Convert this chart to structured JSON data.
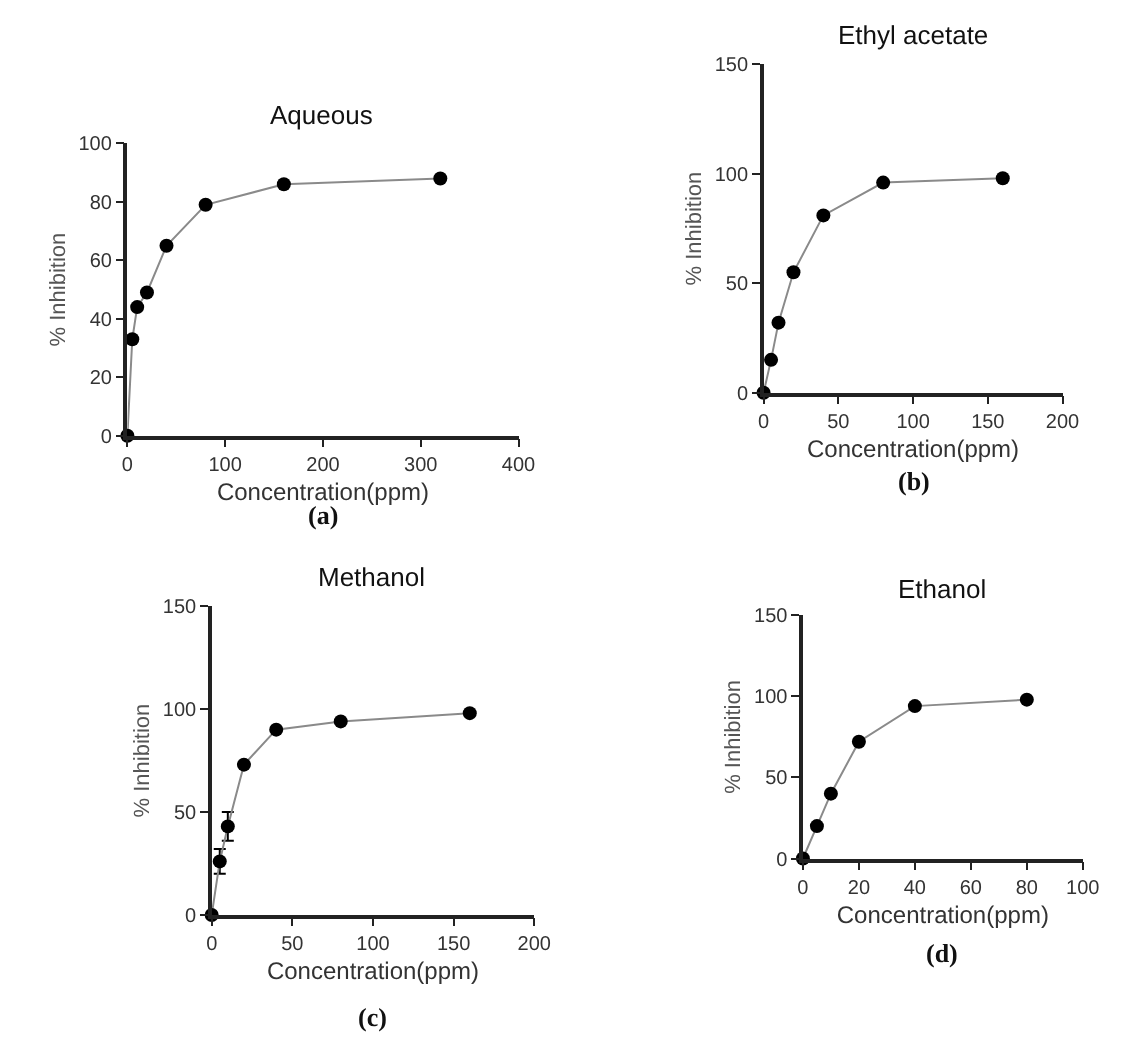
{
  "chart_data": [
    {
      "type": "line",
      "title": "Aqueous",
      "xlabel": "Concentration(ppm)",
      "ylabel": "% Inhibition",
      "annotations": [
        "(a)"
      ],
      "x": [
        0,
        5,
        10,
        20,
        40,
        80,
        160,
        320
      ],
      "series": [
        {
          "color": "#000000",
          "values": [
            0,
            33,
            44,
            49,
            65,
            79,
            86,
            88
          ]
        }
      ],
      "xlim": [
        0,
        400
      ],
      "xticks": [
        0,
        100,
        200,
        300,
        400
      ],
      "ylim": [
        0,
        100
      ],
      "yticks": [
        0,
        20,
        40,
        60,
        80,
        100
      ],
      "marker": "circle",
      "line_style": "solid"
    },
    {
      "type": "line",
      "title": "Ethyl acetate",
      "xlabel": "Concentration(ppm)",
      "ylabel": "% Inhibition",
      "annotations": [
        "(b)"
      ],
      "x": [
        0,
        5,
        10,
        20,
        40,
        80,
        160
      ],
      "series": [
        {
          "color": "#000000",
          "values": [
            0,
            15,
            32,
            55,
            81,
            96,
            98
          ]
        }
      ],
      "xlim": [
        0,
        200
      ],
      "xticks": [
        0,
        50,
        100,
        150,
        200
      ],
      "ylim": [
        0,
        150
      ],
      "yticks": [
        0,
        50,
        100,
        150
      ],
      "marker": "circle",
      "line_style": "solid"
    },
    {
      "type": "line",
      "title": "Methanol",
      "xlabel": "Concentration(ppm)",
      "ylabel": "% Inhibition",
      "annotations": [
        "(c)"
      ],
      "x": [
        0,
        5,
        10,
        20,
        40,
        80,
        160
      ],
      "series": [
        {
          "color": "#000000",
          "values": [
            0,
            26,
            43,
            73,
            90,
            94,
            98
          ],
          "errors": [
            null,
            6,
            7,
            null,
            null,
            null,
            null
          ]
        }
      ],
      "xlim": [
        0,
        200
      ],
      "xticks": [
        0,
        50,
        100,
        150,
        200
      ],
      "ylim": [
        0,
        150
      ],
      "yticks": [
        0,
        50,
        100,
        150
      ],
      "marker": "circle",
      "line_style": "solid"
    },
    {
      "type": "line",
      "title": "Ethanol",
      "xlabel": "Concentration(ppm)",
      "ylabel": "% Inhibition",
      "annotations": [
        "(d)"
      ],
      "x": [
        0,
        5,
        10,
        20,
        40,
        80
      ],
      "series": [
        {
          "color": "#000000",
          "values": [
            0,
            20,
            40,
            72,
            94,
            98
          ]
        }
      ],
      "xlim": [
        0,
        100
      ],
      "xticks": [
        0,
        20,
        40,
        60,
        80,
        100
      ],
      "ylim": [
        0,
        150
      ],
      "yticks": [
        0,
        50,
        100,
        150
      ],
      "marker": "circle",
      "line_style": "solid"
    }
  ]
}
